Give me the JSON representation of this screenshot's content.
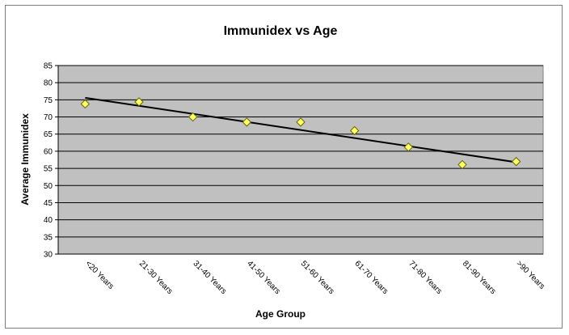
{
  "chart_data": {
    "type": "scatter",
    "title": "Immunidex  vs Age",
    "xlabel": "Age Group",
    "ylabel": "Average Immunidex",
    "categories": [
      "<20 Years",
      "21-30 Years",
      "31-40 Years",
      "41-50 Years",
      "51-60 Years",
      "61-70 Years",
      "71-80 Years",
      "81-90 Years",
      ">90 Years"
    ],
    "series": [
      {
        "values": [
          73.8,
          74.4,
          70.0,
          68.5,
          68.5,
          66.0,
          61.2,
          56.1,
          57.0
        ],
        "marker": "diamond",
        "color": "#ffff66"
      }
    ],
    "trendline": {
      "type": "linear",
      "start": 75.6,
      "end": 56.8,
      "color": "#000000"
    },
    "ylim": [
      30,
      85
    ],
    "yticks": [
      30,
      35,
      40,
      45,
      50,
      55,
      60,
      65,
      70,
      75,
      80,
      85
    ],
    "grid": true,
    "legend": "none",
    "colors": {
      "plot_background": "#c0c0c0",
      "gridline": "#000000",
      "marker_fill": "#ffff66",
      "marker_stroke": "#666600"
    }
  }
}
